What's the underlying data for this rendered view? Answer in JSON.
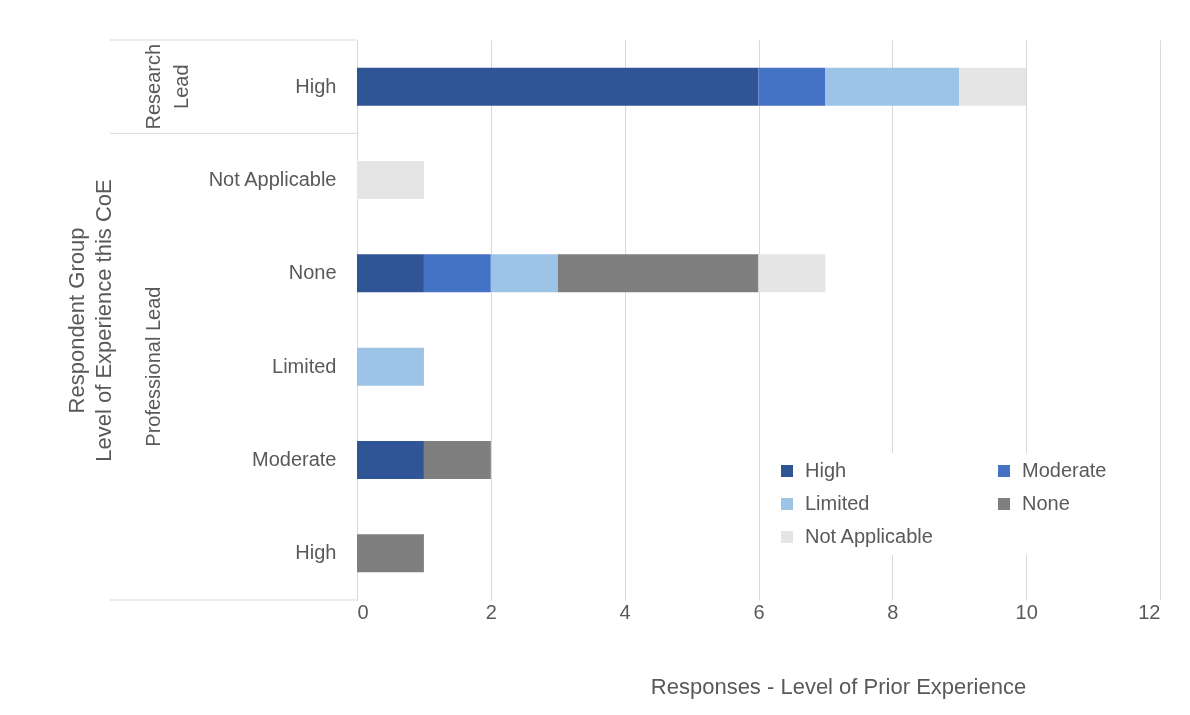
{
  "chart_data": {
    "type": "bar",
    "orientation": "horizontal",
    "stacked": true,
    "xlabel": "Responses - Level of Prior Experience",
    "ylabel": "Respondent Group\nLevel of Experience this CoE",
    "categories": [
      "High",
      "Not Applicable",
      "None",
      "Limited",
      "Moderate",
      "High"
    ],
    "series": [
      {
        "name": "High",
        "color": "#2f5597",
        "values": [
          6,
          null,
          1,
          null,
          1,
          null
        ]
      },
      {
        "name": "Moderate",
        "color": "#4472c4",
        "values": [
          1,
          null,
          1,
          null,
          null,
          null
        ]
      },
      {
        "name": "Limited",
        "color": "#9dc3e6",
        "values": [
          2,
          null,
          1,
          1,
          null,
          null
        ]
      },
      {
        "name": "None",
        "color": "#7f7f7f",
        "values": [
          null,
          null,
          3,
          null,
          1,
          1
        ]
      },
      {
        "name": "Not Applicable",
        "color": "#e5e5e5",
        "values": [
          1,
          1,
          1,
          null,
          null,
          null
        ]
      }
    ],
    "xlim": [
      0,
      12
    ],
    "xticks": [
      0,
      2,
      4,
      6,
      8,
      10,
      12
    ],
    "grid": "x",
    "legend": "bottom right",
    "annotations": [
      "Research Lead",
      "Professional Lead"
    ]
  }
}
